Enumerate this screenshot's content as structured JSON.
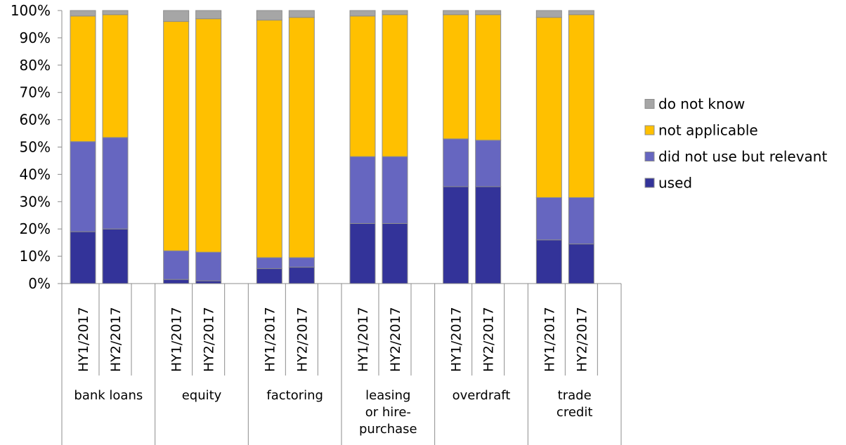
{
  "chart_data": {
    "type": "bar",
    "stacked": true,
    "ylim": [
      0,
      100
    ],
    "y_ticks": [
      "0%",
      "10%",
      "20%",
      "30%",
      "40%",
      "50%",
      "60%",
      "70%",
      "80%",
      "90%",
      "100%"
    ],
    "grid": false,
    "legend_position": "right",
    "groups": [
      {
        "label_lines": [
          "bank loans"
        ],
        "periods": [
          "HY1/2017",
          "HY2/2017"
        ]
      },
      {
        "label_lines": [
          "equity"
        ],
        "periods": [
          "HY1/2017",
          "HY2/2017"
        ]
      },
      {
        "label_lines": [
          "factoring"
        ],
        "periods": [
          "HY1/2017",
          "HY2/2017"
        ]
      },
      {
        "label_lines": [
          "leasing",
          "or hire-",
          "purchase"
        ],
        "periods": [
          "HY1/2017",
          "HY2/2017"
        ]
      },
      {
        "label_lines": [
          "overdraft"
        ],
        "periods": [
          "HY1/2017",
          "HY2/2017"
        ]
      },
      {
        "label_lines": [
          "trade",
          "credit"
        ],
        "periods": [
          "HY1/2017",
          "HY2/2017"
        ]
      }
    ],
    "series": [
      {
        "name": "used",
        "color": "#333399",
        "values": [
          19,
          20,
          1.5,
          1,
          5.5,
          6,
          22,
          22,
          35.5,
          35.5,
          16,
          14.5
        ]
      },
      {
        "name": "did not use but relevant",
        "color": "#6666c0",
        "values": [
          33,
          33.5,
          10.5,
          10.5,
          4,
          3.5,
          24.5,
          24.5,
          17.5,
          17,
          15.5,
          17
        ]
      },
      {
        "name": "not applicable",
        "color": "#ffc000",
        "values": [
          46,
          45,
          84,
          85.5,
          87,
          88,
          51.5,
          52,
          45.5,
          46,
          66,
          67
        ]
      },
      {
        "name": "do not know",
        "color": "#a6a6a6",
        "values": [
          2,
          1.5,
          4,
          3,
          3.5,
          2.5,
          2,
          1.5,
          1.5,
          1.5,
          2.5,
          1.5
        ]
      }
    ],
    "legend_order": [
      "do not know",
      "not applicable",
      "did not use but relevant",
      "used"
    ]
  }
}
